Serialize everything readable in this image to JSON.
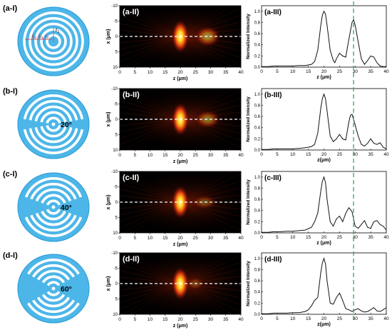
{
  "figure": {
    "rows": [
      {
        "lens_label": "(a-I)",
        "lens_blocked_sector_deg": 0,
        "angle_label": "",
        "inset_labels": [
          "r",
          "1",
          "ε",
          "2",
          "ε",
          "3",
          "r",
          "2"
        ],
        "map_label": "(a-II)",
        "plot_label": "(a-III)",
        "map_hotspots_um": [
          {
            "z": 20,
            "w": 2.0,
            "strength": 1.0
          },
          {
            "z": 29,
            "w": 3.0,
            "strength": 0.55
          }
        ],
        "map_axis": {
          "xlabel": "z (μm)",
          "ylabel": "x (μm)",
          "xticks": [
            "0",
            "5",
            "10",
            "15",
            "20",
            "25",
            "30",
            "35",
            "40"
          ],
          "yticks": [
            "-10",
            "-5",
            "0",
            "5",
            "10"
          ]
        },
        "plot_axis": {
          "xlabel": "z (μm)",
          "ylabel": "Normalized Intensity",
          "xticks": [
            "0",
            "5",
            "10",
            "15",
            "20",
            "25",
            "30",
            "35",
            "40"
          ],
          "yticks": [
            "0.0",
            "0.2",
            "0.4",
            "0.6",
            "0.8",
            "1.0"
          ],
          "ylim": [
            0,
            1.1
          ],
          "xlim": [
            0,
            40
          ]
        }
      },
      {
        "lens_label": "(b-I)",
        "lens_blocked_sector_deg": 20,
        "angle_label": "20°",
        "inset_labels": [],
        "map_label": "(b-II)",
        "plot_label": "(b-III)",
        "map_hotspots_um": [
          {
            "z": 20,
            "w": 2.0,
            "strength": 1.0
          },
          {
            "z": 29,
            "w": 3.0,
            "strength": 0.45
          }
        ],
        "map_axis": {
          "xlabel": "z (μm)",
          "ylabel": "x (μm)",
          "xticks": [
            "0",
            "5",
            "10",
            "15",
            "20",
            "25",
            "30",
            "35",
            "40"
          ],
          "yticks": [
            "-10",
            "-5",
            "0",
            "5",
            "10"
          ]
        },
        "plot_axis": {
          "xlabel": "z(μm)",
          "ylabel": "Normalized Intensity",
          "xticks": [
            "0",
            "5",
            "10",
            "15",
            "20",
            "25",
            "30",
            "35",
            "40"
          ],
          "yticks": [
            "0.0",
            "0.2",
            "0.4",
            "0.6",
            "0.8",
            "1.0"
          ],
          "ylim": [
            0,
            1.1
          ],
          "xlim": [
            0,
            40
          ]
        }
      },
      {
        "lens_label": "(c-I)",
        "lens_blocked_sector_deg": 40,
        "angle_label": "40°",
        "inset_labels": [],
        "map_label": "(c-II)",
        "plot_label": "(c-III)",
        "map_hotspots_um": [
          {
            "z": 20,
            "w": 2.0,
            "strength": 1.0
          },
          {
            "z": 28,
            "w": 3.0,
            "strength": 0.3
          }
        ],
        "map_axis": {
          "xlabel": "z (μm)",
          "ylabel": "x (μm)",
          "xticks": [
            "0",
            "5",
            "10",
            "15",
            "20",
            "25",
            "30",
            "35",
            "40"
          ],
          "yticks": [
            "-10",
            "-5",
            "0",
            "5",
            "10"
          ]
        },
        "plot_axis": {
          "xlabel": "z (μm)",
          "ylabel": "Normalized Intensity",
          "xticks": [
            "0",
            "5",
            "10",
            "15",
            "20",
            "25",
            "30",
            "35",
            "40"
          ],
          "yticks": [
            "0.0",
            "0.2",
            "0.4",
            "0.6",
            "0.8",
            "1.0"
          ],
          "ylim": [
            0,
            1.1
          ],
          "xlim": [
            0,
            40
          ]
        }
      },
      {
        "lens_label": "(d-I)",
        "lens_blocked_sector_deg": 60,
        "angle_label": "60°",
        "inset_labels": [],
        "map_label": "(d-II)",
        "plot_label": "(d-III)",
        "map_hotspots_um": [
          {
            "z": 20,
            "w": 2.0,
            "strength": 1.0
          },
          {
            "z": 25,
            "w": 2.0,
            "strength": 0.25
          }
        ],
        "map_axis": {
          "xlabel": "z (μm)",
          "ylabel": "x (μm)",
          "xticks": [
            "0",
            "5",
            "10",
            "15",
            "20",
            "25",
            "30",
            "35",
            "40"
          ],
          "yticks": [
            "-10",
            "-5",
            "0",
            "5",
            "10"
          ]
        },
        "plot_axis": {
          "xlabel": "z(μm)",
          "ylabel": "Normalized Intensity",
          "xticks": [
            "0",
            "5",
            "10",
            "15",
            "20",
            "25",
            "30",
            "35",
            "40"
          ],
          "yticks": [
            "0.0",
            "0.2",
            "0.4",
            "0.6",
            "0.8",
            "1.0"
          ],
          "ylim": [
            0,
            1.1
          ],
          "xlim": [
            0,
            40
          ]
        }
      }
    ],
    "reference_line_z_um": 29.5,
    "colors": {
      "lens": "#4db6e8",
      "lens_edge": "#2f9fd6",
      "slot": "#ffffff",
      "curve": "#111111",
      "ref_line": "#33aa55",
      "map_axis_dash": "#ffffff"
    }
  },
  "chart_data": [
    {
      "type": "line",
      "title": "(a-III)",
      "xlabel": "z (μm)",
      "ylabel": "Normalized Intensity",
      "xlim": [
        0,
        40
      ],
      "ylim": [
        0,
        1.1
      ],
      "x": [
        0,
        2,
        4,
        6,
        8,
        10,
        12,
        14,
        16,
        17,
        18,
        19,
        19.5,
        20,
        20.5,
        21,
        22,
        23,
        23.5,
        24,
        25,
        26,
        27,
        28,
        29,
        29.5,
        30,
        31,
        32,
        33,
        34,
        35,
        36,
        37,
        38,
        39,
        40
      ],
      "series": [
        {
          "values": [
            0.01,
            0.01,
            0.02,
            0.02,
            0.02,
            0.02,
            0.03,
            0.03,
            0.05,
            0.1,
            0.3,
            0.75,
            0.93,
            1.0,
            0.95,
            0.75,
            0.3,
            0.12,
            0.08,
            0.15,
            0.25,
            0.2,
            0.18,
            0.5,
            0.8,
            0.85,
            0.75,
            0.45,
            0.15,
            0.05,
            0.12,
            0.2,
            0.18,
            0.08,
            0.02,
            0.01,
            0.01
          ]
        }
      ]
    },
    {
      "type": "line",
      "title": "(b-III)",
      "xlabel": "z(μm)",
      "ylabel": "Normalized Intensity",
      "xlim": [
        0,
        40
      ],
      "ylim": [
        0,
        1.1
      ],
      "x": [
        0,
        2,
        4,
        6,
        8,
        10,
        12,
        14,
        16,
        17,
        18,
        19,
        19.5,
        20,
        20.5,
        21,
        22,
        23,
        24,
        25,
        26,
        27,
        28,
        28.5,
        29,
        30,
        31,
        32,
        33,
        34,
        35,
        36,
        37,
        38,
        39,
        40
      ],
      "series": [
        {
          "values": [
            0.01,
            0.01,
            0.02,
            0.02,
            0.02,
            0.02,
            0.03,
            0.04,
            0.06,
            0.1,
            0.3,
            0.75,
            0.92,
            1.0,
            0.92,
            0.7,
            0.25,
            0.15,
            0.2,
            0.28,
            0.2,
            0.18,
            0.5,
            0.62,
            0.64,
            0.45,
            0.25,
            0.1,
            0.07,
            0.12,
            0.2,
            0.12,
            0.1,
            0.13,
            0.05,
            0.02
          ]
        }
      ]
    },
    {
      "type": "line",
      "title": "(c-III)",
      "xlabel": "z (μm)",
      "ylabel": "Normalized Intensity",
      "xlim": [
        0,
        40
      ],
      "ylim": [
        0,
        1.1
      ],
      "x": [
        0,
        2,
        4,
        6,
        8,
        10,
        12,
        14,
        16,
        17,
        18,
        19,
        19.5,
        20,
        20.5,
        21,
        22,
        23,
        24,
        25,
        26,
        27,
        28,
        29,
        30,
        31,
        32,
        33,
        34,
        35,
        36,
        37,
        38,
        39,
        40
      ],
      "series": [
        {
          "values": [
            0.01,
            0.01,
            0.02,
            0.02,
            0.03,
            0.03,
            0.04,
            0.05,
            0.1,
            0.2,
            0.35,
            0.75,
            0.92,
            1.0,
            0.9,
            0.6,
            0.2,
            0.12,
            0.25,
            0.3,
            0.2,
            0.35,
            0.45,
            0.38,
            0.12,
            0.08,
            0.15,
            0.22,
            0.1,
            0.08,
            0.2,
            0.22,
            0.15,
            0.12,
            0.05
          ]
        }
      ]
    },
    {
      "type": "line",
      "title": "(d-III)",
      "xlabel": "z(μm)",
      "ylabel": "Normalized Intensity",
      "xlim": [
        0,
        40
      ],
      "ylim": [
        0,
        1.1
      ],
      "x": [
        0,
        2,
        4,
        6,
        8,
        10,
        12,
        14,
        15,
        16,
        17,
        18,
        19,
        19.5,
        20,
        20.5,
        21,
        22,
        23,
        24,
        25,
        26,
        27,
        28,
        29,
        30,
        31,
        32,
        33,
        34,
        35,
        36,
        37,
        38,
        39,
        40
      ],
      "series": [
        {
          "values": [
            0.01,
            0.01,
            0.02,
            0.02,
            0.02,
            0.03,
            0.03,
            0.05,
            0.08,
            0.15,
            0.25,
            0.3,
            0.75,
            0.92,
            1.0,
            0.9,
            0.6,
            0.2,
            0.18,
            0.3,
            0.38,
            0.25,
            0.1,
            0.08,
            0.05,
            0.08,
            0.1,
            0.06,
            0.04,
            0.05,
            0.08,
            0.12,
            0.06,
            0.05,
            0.08,
            0.12
          ]
        }
      ]
    }
  ]
}
